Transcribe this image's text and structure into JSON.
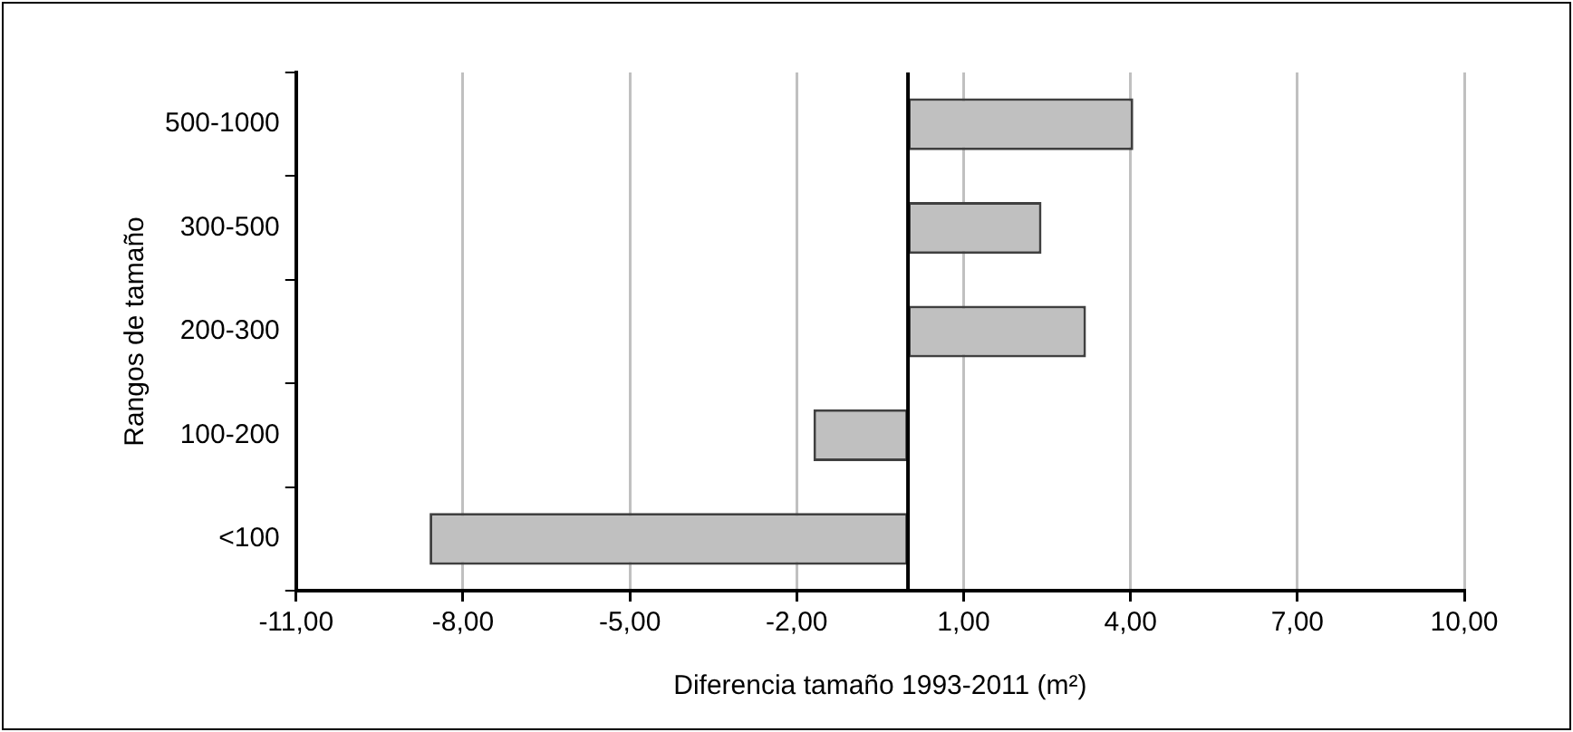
{
  "chart_data": {
    "type": "bar",
    "orientation": "horizontal",
    "xlabel": "Diferencia tamaño 1993-2011 (m²)",
    "ylabel": "Rangos de tamaño",
    "categories": [
      "500-1000",
      "300-500",
      "200-300",
      "100-200",
      "<100"
    ],
    "values": [
      4.05,
      2.4,
      3.2,
      -1.7,
      -8.6
    ],
    "color": "#c0c0c0",
    "xlim": [
      -11,
      10
    ],
    "xticks": [
      {
        "value": -11,
        "label": "-11,00"
      },
      {
        "value": -8,
        "label": "-8,00"
      },
      {
        "value": -5,
        "label": "-5,00"
      },
      {
        "value": -2,
        "label": "-2,00"
      },
      {
        "value": 1,
        "label": "1,00"
      },
      {
        "value": 4,
        "label": "4,00"
      },
      {
        "value": 7,
        "label": "7,00"
      },
      {
        "value": 10,
        "label": "10,00"
      }
    ],
    "grid": "x",
    "legend": false
  }
}
